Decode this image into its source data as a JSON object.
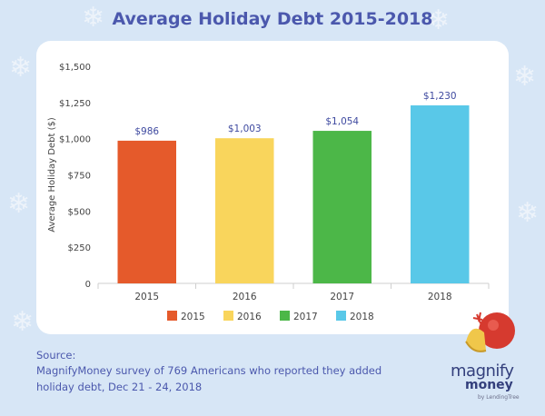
{
  "title": "Average Holiday Debt 2015-2018",
  "colors": {
    "title": "#4b58ad",
    "background": "#d7e6f6",
    "label": "#3f4aa0",
    "axis": "#444444"
  },
  "chart_data": {
    "type": "bar",
    "categories": [
      "2015",
      "2016",
      "2017",
      "2018"
    ],
    "values": [
      986,
      1003,
      1054,
      1230
    ],
    "value_labels": [
      "$986",
      "$1,003",
      "$1,054",
      "$1,230"
    ],
    "colors": [
      "#e55a2b",
      "#f9d55c",
      "#4cb748",
      "#59c8e8"
    ],
    "ylabel": "Average Holiday Debt ($)",
    "xlabel": "",
    "ylim": [
      0,
      1500
    ],
    "yticks": [
      0,
      250,
      500,
      750,
      1000,
      1250,
      1500
    ],
    "ytick_labels": [
      "0",
      "$250",
      "$500",
      "$750",
      "$1,000",
      "$1,250",
      "$1,500"
    ],
    "legend": [
      "2015",
      "2016",
      "2017",
      "2018"
    ],
    "legend_position": "bottom-center",
    "grid": false
  },
  "source": {
    "heading": "Source:",
    "text": "MagnifyMoney survey of 769 Americans who reported they added holiday debt, Dec 21 - 24, 2018"
  },
  "logo": {
    "line1": "magnify",
    "line2": "money",
    "line3": "by LendingTree"
  },
  "decorations": {
    "snowflake_icon": "snowflake-icon",
    "ornament_icon": "christmas-ornament-icon"
  }
}
